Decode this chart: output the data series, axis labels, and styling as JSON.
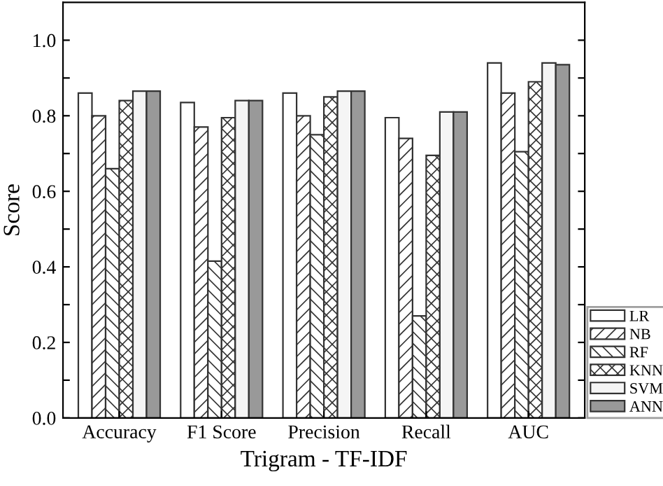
{
  "chart_data": {
    "type": "bar",
    "xlabel": "Trigram - TF-IDF",
    "ylabel": "Score",
    "categories": [
      "Accuracy",
      "F1 Score",
      "Precision",
      "Recall",
      "AUC"
    ],
    "series": [
      {
        "name": "LR",
        "color": "#ffffff",
        "values": [
          0.86,
          0.835,
          0.86,
          0.795,
          0.94
        ]
      },
      {
        "name": "NB",
        "color": "#333333",
        "values": [
          0.8,
          0.77,
          0.8,
          0.74,
          0.86
        ]
      },
      {
        "name": "RF",
        "color": "#333333",
        "values": [
          0.66,
          0.415,
          0.75,
          0.27,
          0.705
        ]
      },
      {
        "name": "KNN",
        "color": "#333333",
        "values": [
          0.84,
          0.795,
          0.85,
          0.695,
          0.89
        ]
      },
      {
        "name": "SVM",
        "color": "#f5f5f5",
        "values": [
          0.865,
          0.84,
          0.865,
          0.81,
          0.94
        ]
      },
      {
        "name": "ANN",
        "color": "#999999",
        "values": [
          0.865,
          0.84,
          0.865,
          0.81,
          0.935
        ]
      }
    ],
    "ylim": [
      0,
      1.1
    ],
    "yticks": [
      {
        "value": 0.0,
        "label": "0.0"
      },
      {
        "value": 0.1,
        "label": null
      },
      {
        "value": 0.2,
        "label": "0.2"
      },
      {
        "value": 0.3,
        "label": null
      },
      {
        "value": 0.4,
        "label": "0.4"
      },
      {
        "value": 0.5,
        "label": null
      },
      {
        "value": 0.6,
        "label": "0.6"
      },
      {
        "value": 0.7,
        "label": null
      },
      {
        "value": 0.8,
        "label": "0.8"
      },
      {
        "value": 0.9,
        "label": null
      },
      {
        "value": 1.0,
        "label": "1.0"
      }
    ],
    "legend": "bottom right",
    "grid": false
  }
}
